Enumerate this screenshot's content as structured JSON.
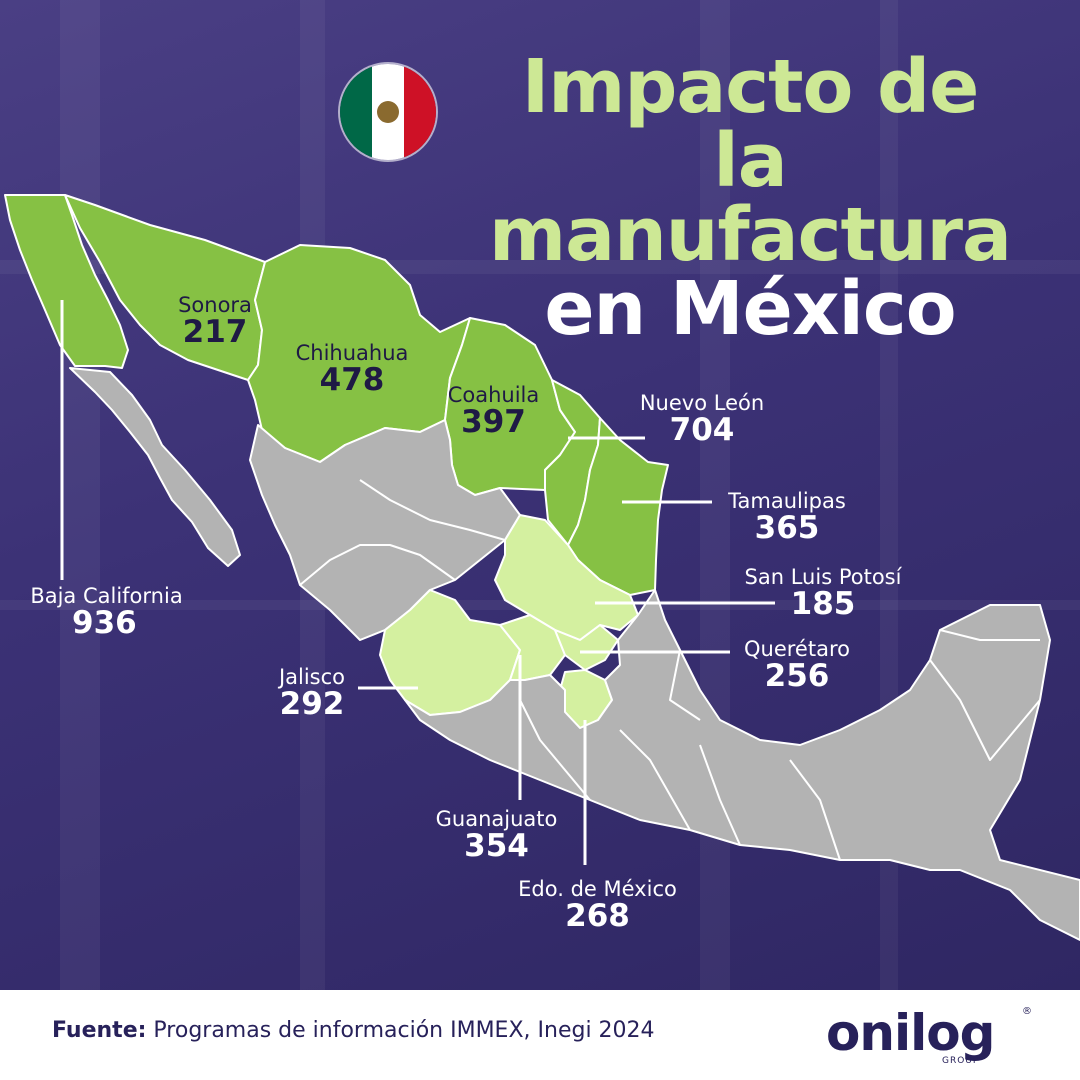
{
  "title": {
    "line1": "Impacto de",
    "line2": "la manufactura",
    "line3": "en México"
  },
  "flag_icon": "mexico-flag",
  "colors": {
    "highlight_dark": "#86c144",
    "highlight_light": "#d4f0a0",
    "other_states": "#b3b3b3",
    "title_green": "#cde895",
    "background": "#3a2f6e",
    "text_dark": "#1f1a45"
  },
  "states": [
    {
      "name": "Baja California",
      "value": "936"
    },
    {
      "name": "Sonora",
      "value": "217"
    },
    {
      "name": "Chihuahua",
      "value": "478"
    },
    {
      "name": "Coahuila",
      "value": "397"
    },
    {
      "name": "Nuevo León",
      "value": "704"
    },
    {
      "name": "Tamaulipas",
      "value": "365"
    },
    {
      "name": "San Luis Potosí",
      "value": "185"
    },
    {
      "name": "Querétaro",
      "value": "256"
    },
    {
      "name": "Jalisco",
      "value": "292"
    },
    {
      "name": "Guanajuato",
      "value": "354"
    },
    {
      "name": "Edo. de México",
      "value": "268"
    }
  ],
  "footer": {
    "source_label": "Fuente:",
    "source_text": " Programas de información IMMEX, Inegi 2024"
  },
  "logo": {
    "word": "onilog",
    "group": "GROUP",
    "registered": "®"
  }
}
